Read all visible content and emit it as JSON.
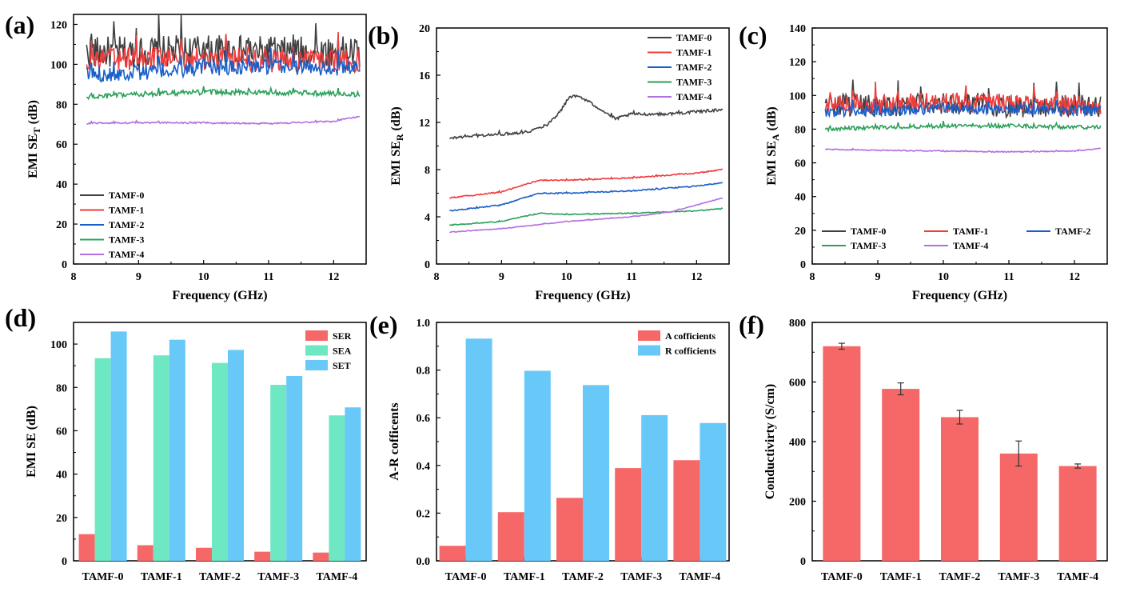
{
  "chart_data": [
    {
      "panel_label": "(a)",
      "type": "line",
      "xlabel": "Frequency (GHz)",
      "ylabel_main": "EMI SE",
      "ylabel_sub": "T",
      "ylabel_unit": " (dB)",
      "xlim": [
        8,
        12.5
      ],
      "ylim": [
        0,
        125
      ],
      "xticks": [
        "8",
        "9",
        "10",
        "11",
        "12"
      ],
      "yticks": [
        "0",
        "20",
        "40",
        "60",
        "80",
        "100",
        "120"
      ],
      "legend_position": "lower-left",
      "series": [
        {
          "name": "TAMF-0",
          "color": "#404040",
          "noise": 8,
          "x": [
            8.2,
            9.0,
            10.0,
            11.0,
            12.4
          ],
          "values": [
            106,
            106,
            107,
            106,
            106
          ]
        },
        {
          "name": "TAMF-1",
          "color": "#f03c3c",
          "noise": 6,
          "x": [
            8.2,
            9.0,
            10.0,
            11.0,
            12.4
          ],
          "values": [
            102,
            103,
            103,
            102,
            102
          ]
        },
        {
          "name": "TAMF-2",
          "color": "#1a5fc8",
          "noise": 4,
          "x": [
            8.2,
            9.0,
            10.0,
            11.0,
            12.4
          ],
          "values": [
            95,
            96,
            98,
            99,
            98
          ]
        },
        {
          "name": "TAMF-3",
          "color": "#2ca05a",
          "noise": 1.3,
          "x": [
            8.2,
            9.0,
            10.0,
            11.0,
            12.4
          ],
          "values": [
            83.5,
            85,
            86,
            86,
            85
          ]
        },
        {
          "name": "TAMF-4",
          "color": "#b36fe0",
          "noise": 0.4,
          "x": [
            8.2,
            9.0,
            10.0,
            11.0,
            12.0,
            12.4
          ],
          "values": [
            70.5,
            70.8,
            70.7,
            70.3,
            71.5,
            74
          ]
        }
      ]
    },
    {
      "panel_label": "(b)",
      "type": "line",
      "xlabel": "Frequency (GHz)",
      "ylabel_main": "EMI SE",
      "ylabel_sub": "R",
      "ylabel_unit": " (dB)",
      "xlim": [
        8,
        12.5
      ],
      "ylim": [
        0,
        20
      ],
      "xticks": [
        "8",
        "9",
        "10",
        "11",
        "12"
      ],
      "yticks": [
        "0",
        "4",
        "8",
        "12",
        "16",
        "20"
      ],
      "legend_position": "top-right",
      "series": [
        {
          "name": "TAMF-0",
          "color": "#404040",
          "noise": 0.12,
          "x": [
            8.2,
            8.4,
            9.0,
            9.4,
            9.7,
            9.9,
            10.05,
            10.2,
            10.5,
            10.75,
            11.0,
            11.5,
            12.0,
            12.4
          ],
          "values": [
            10.6,
            10.8,
            11.0,
            11.2,
            11.8,
            12.9,
            14.2,
            14.2,
            13.2,
            12.3,
            12.7,
            12.7,
            12.9,
            13.1
          ]
        },
        {
          "name": "TAMF-1",
          "color": "#f03c3c",
          "noise": 0.05,
          "x": [
            8.2,
            9.0,
            9.4,
            9.6,
            10.0,
            11.0,
            12.0,
            12.4
          ],
          "values": [
            5.6,
            6.1,
            6.8,
            7.1,
            7.1,
            7.3,
            7.7,
            8.0
          ]
        },
        {
          "name": "TAMF-2",
          "color": "#1a5fc8",
          "noise": 0.05,
          "x": [
            8.2,
            9.0,
            9.4,
            9.6,
            10.0,
            11.0,
            12.0,
            12.4
          ],
          "values": [
            4.5,
            5.0,
            5.7,
            6.0,
            6.0,
            6.2,
            6.6,
            6.9
          ]
        },
        {
          "name": "TAMF-3",
          "color": "#2ca05a",
          "noise": 0.04,
          "x": [
            8.2,
            9.0,
            9.4,
            9.6,
            10.0,
            11.0,
            12.0,
            12.4
          ],
          "values": [
            3.3,
            3.6,
            4.1,
            4.3,
            4.2,
            4.3,
            4.5,
            4.7
          ]
        },
        {
          "name": "TAMF-4",
          "color": "#b36fe0",
          "noise": 0.03,
          "x": [
            8.2,
            9.0,
            10.0,
            11.0,
            11.6,
            12.0,
            12.4
          ],
          "values": [
            2.7,
            3.0,
            3.6,
            4.0,
            4.4,
            5.0,
            5.6
          ]
        }
      ]
    },
    {
      "panel_label": "(c)",
      "type": "line",
      "xlabel": "Frequency (GHz)",
      "ylabel_main": "EMI SE",
      "ylabel_sub": "A",
      "ylabel_unit": " (dB)",
      "xlim": [
        8,
        12.5
      ],
      "ylim": [
        0,
        140
      ],
      "xticks": [
        "8",
        "9",
        "10",
        "11",
        "12"
      ],
      "yticks": [
        "0",
        "20",
        "40",
        "60",
        "80",
        "100",
        "120",
        "140"
      ],
      "legend_position": "lower-center",
      "series": [
        {
          "name": "TAMF-0",
          "color": "#404040",
          "noise": 7,
          "x": [
            8.2,
            9.0,
            10.0,
            11.0,
            12.4
          ],
          "values": [
            94,
            94,
            95,
            94,
            94
          ]
        },
        {
          "name": "TAMF-1",
          "color": "#f03c3c",
          "noise": 6,
          "x": [
            8.2,
            9.0,
            10.0,
            11.0,
            12.4
          ],
          "values": [
            95,
            95,
            96,
            95,
            94
          ]
        },
        {
          "name": "TAMF-2",
          "color": "#1a5fc8",
          "noise": 3,
          "x": [
            8.2,
            9.0,
            10.0,
            11.0,
            12.4
          ],
          "values": [
            90,
            91,
            92,
            92,
            91
          ]
        },
        {
          "name": "TAMF-3",
          "color": "#2ca05a",
          "noise": 1.2,
          "x": [
            8.2,
            9.0,
            10.0,
            11.0,
            12.4
          ],
          "values": [
            80,
            81,
            82,
            82,
            81
          ]
        },
        {
          "name": "TAMF-4",
          "color": "#b36fe0",
          "noise": 0.3,
          "x": [
            8.2,
            9.0,
            10.0,
            11.0,
            12.0,
            12.4
          ],
          "values": [
            68,
            67.5,
            67,
            66.5,
            67,
            68.5
          ]
        }
      ]
    },
    {
      "panel_label": "(d)",
      "type": "bar",
      "ylabel": "EMI SE (dB)",
      "ylim": [
        0,
        110
      ],
      "yticks": [
        "0",
        "20",
        "40",
        "60",
        "80",
        "100"
      ],
      "categories": [
        "TAMF-0",
        "TAMF-1",
        "TAMF-2",
        "TAMF-3",
        "TAMF-4"
      ],
      "legend_position": "top-right",
      "series": [
        {
          "name": "SER",
          "color": "#f66868",
          "values": [
            12.3,
            7.2,
            6.0,
            4.2,
            3.8
          ]
        },
        {
          "name": "SEA",
          "color": "#6ee8c2",
          "values": [
            93.5,
            94.8,
            91.3,
            81.2,
            67.1
          ]
        },
        {
          "name": "SET",
          "color": "#68c8f8",
          "values": [
            105.8,
            102.0,
            97.3,
            85.3,
            70.8
          ]
        }
      ]
    },
    {
      "panel_label": "(e)",
      "type": "bar",
      "ylabel": "A-R cofficents",
      "ylim": [
        0,
        1.0
      ],
      "yticks": [
        "0.0",
        "0.2",
        "0.4",
        "0.6",
        "0.8",
        "1.0"
      ],
      "categories": [
        "TAMF-0",
        "TAMF-1",
        "TAMF-2",
        "TAMF-3",
        "TAMF-4"
      ],
      "legend_position": "top-right",
      "series": [
        {
          "name": "A cofficients",
          "color": "#f66868",
          "values": [
            0.063,
            0.204,
            0.264,
            0.389,
            0.422
          ]
        },
        {
          "name": "R cofficients",
          "color": "#68c8f8",
          "values": [
            0.932,
            0.797,
            0.737,
            0.611,
            0.578
          ]
        }
      ]
    },
    {
      "panel_label": "(f)",
      "type": "bar",
      "ylabel": "Conductivirty (S/cm)",
      "ylim": [
        0,
        800
      ],
      "yticks": [
        "0",
        "200",
        "400",
        "600",
        "800"
      ],
      "categories": [
        "TAMF-0",
        "TAMF-1",
        "TAMF-2",
        "TAMF-3",
        "TAMF-4"
      ],
      "series": [
        {
          "color": "#f66868",
          "values": [
            720,
            577,
            482,
            360,
            318
          ],
          "errors": [
            10,
            20,
            23,
            42,
            7
          ]
        }
      ]
    }
  ]
}
